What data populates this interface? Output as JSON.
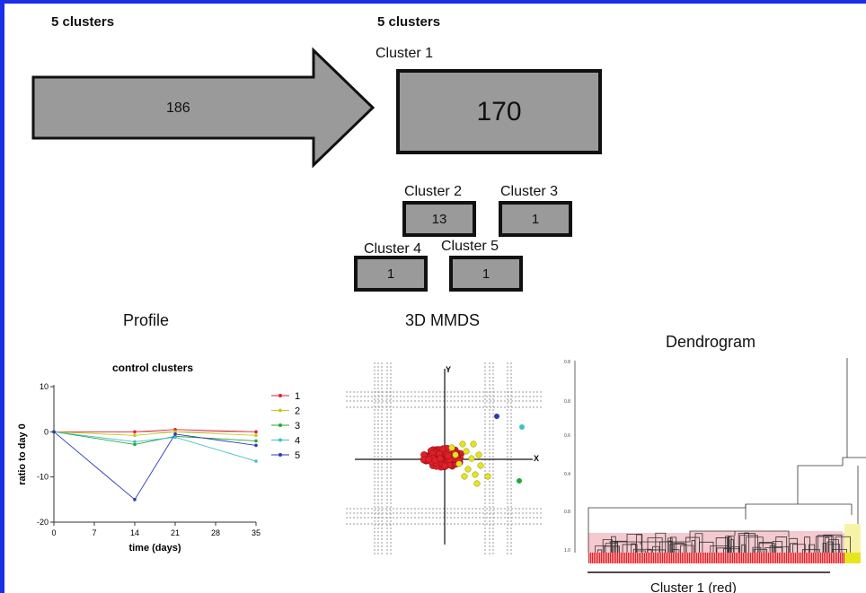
{
  "headers": {
    "left": "5 clusters",
    "right": "5 clusters"
  },
  "arrow": {
    "value": "186"
  },
  "clusters": [
    {
      "label": "Cluster 1",
      "value": "170"
    },
    {
      "label": "Cluster 2",
      "value": "13"
    },
    {
      "label": "Cluster 3",
      "value": "1"
    },
    {
      "label": "Cluster 4",
      "value": "1"
    },
    {
      "label": "Cluster 5",
      "value": "1"
    }
  ],
  "panels": {
    "profile": "Profile",
    "mmds": "3D MMDS",
    "dendrogram": "Dendrogram"
  },
  "mmds_axes": {
    "y": "Y",
    "x": "X"
  },
  "dendrogram_caption": "Cluster 1 (red)",
  "colors": {
    "border": "#1b2fe8",
    "box_fill": "#9a9a9a",
    "cluster1": "#e8202a",
    "cluster2": "#d8d820",
    "cluster3": "#22a83a",
    "cluster4": "#40c0c8",
    "cluster5": "#2a3ab0",
    "dendro_pink": "#f4c9cf"
  },
  "chart_data": {
    "type": "line",
    "title": "control clusters",
    "xlabel": "time (days)",
    "ylabel": "ratio to day 0",
    "x": [
      0,
      14,
      21,
      35
    ],
    "xticks": [
      0,
      7,
      14,
      21,
      28,
      35
    ],
    "yticks": [
      10,
      0,
      -10,
      -20
    ],
    "xlim": [
      0,
      35
    ],
    "ylim": [
      -20,
      10
    ],
    "legend_position": "right",
    "series": [
      {
        "name": "1",
        "color": "#e8202a",
        "values": [
          0,
          0,
          0.5,
          0
        ]
      },
      {
        "name": "2",
        "color": "#c8c820",
        "values": [
          0,
          -0.8,
          0,
          -0.8
        ]
      },
      {
        "name": "3",
        "color": "#22a83a",
        "values": [
          0,
          -2.8,
          -1,
          -2
        ]
      },
      {
        "name": "4",
        "color": "#40c0c8",
        "values": [
          0,
          -2.2,
          -1.2,
          -6.5
        ]
      },
      {
        "name": "5",
        "color": "#2a3ab0",
        "values": [
          0,
          -15,
          -0.5,
          -3
        ]
      }
    ]
  }
}
